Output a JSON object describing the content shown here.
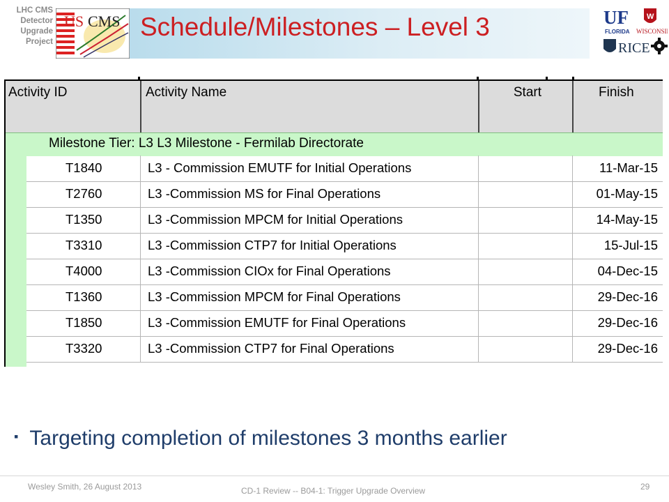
{
  "header": {
    "project_lines": [
      "LHC CMS",
      "Detector",
      "Upgrade",
      "Project"
    ],
    "title": "Schedule/Milestones – Level 3",
    "logo_left": {
      "us": "US",
      "cms": "CMS"
    },
    "logo_right": {
      "uf": "UF",
      "florida": "FLORIDA",
      "wisconsin": "WISCONSIN",
      "rice": "RICE"
    }
  },
  "table": {
    "columns": [
      "Activity ID",
      "Activity Name",
      "Start",
      "Finish"
    ],
    "milestone_tier": "Milestone Tier: L3  L3 Milestone - Fermilab Directorate",
    "rows": [
      {
        "id": "T1840",
        "name": "L3 - Commission EMUTF for Initial Operations",
        "start": "",
        "finish": "11-Mar-15"
      },
      {
        "id": "T2760",
        "name": "L3 -Commission MS for Final Operations",
        "start": "",
        "finish": "01-May-15"
      },
      {
        "id": "T1350",
        "name": "L3 -Commission MPCM for Initial Operations",
        "start": "",
        "finish": "14-May-15"
      },
      {
        "id": "T3310",
        "name": "L3 -Commission CTP7 for Initial Operations",
        "start": "",
        "finish": "15-Jul-15"
      },
      {
        "id": "T4000",
        "name": "L3 -Commission CIOx for Final Operations",
        "start": "",
        "finish": "04-Dec-15"
      },
      {
        "id": "T1360",
        "name": "L3 -Commission MPCM for Final Operations",
        "start": "",
        "finish": "29-Dec-16"
      },
      {
        "id": "T1850",
        "name": "L3 -Commission EMUTF for Final Operations",
        "start": "",
        "finish": "29-Dec-16"
      },
      {
        "id": "T3320",
        "name": "L3 -Commission CTP7 for Final Operations",
        "start": "",
        "finish": "29-Dec-16"
      }
    ]
  },
  "bullet": {
    "icon": "square-bullet-icon",
    "text": "Targeting completion of milestones 3 months earlier"
  },
  "footer": {
    "left": "Wesley Smith, 26 August 2013",
    "center": "CD-1  Review -- B04-1: Trigger Upgrade Overview",
    "page": "29"
  },
  "colors": {
    "title": "#cc1f22",
    "banner": "#b9dcec",
    "milestone_row": "#c9f7c9",
    "header_row": "#dcdcdc",
    "bullet_text": "#1f3d6a"
  }
}
